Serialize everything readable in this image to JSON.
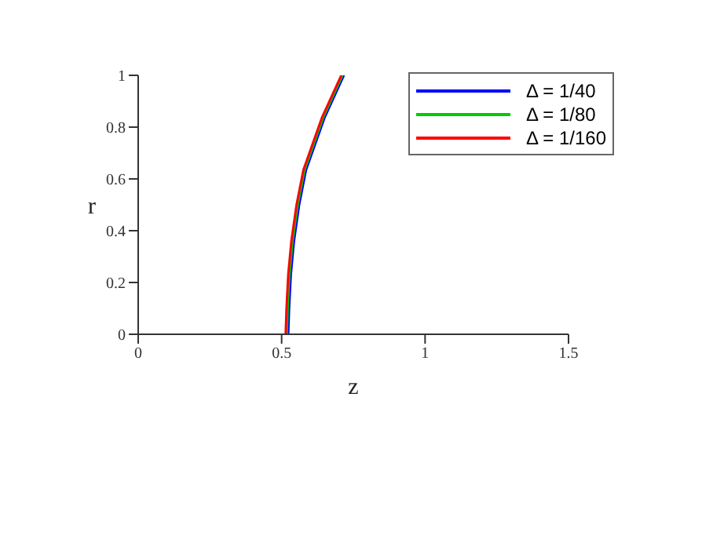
{
  "chart_data": {
    "type": "line",
    "xlabel": "z",
    "ylabel": "r",
    "xlim": [
      0,
      1.5
    ],
    "ylim": [
      0,
      1
    ],
    "xticks": [
      0,
      0.5,
      1,
      1.5
    ],
    "yticks": [
      0,
      0.2,
      0.4,
      0.6,
      0.8,
      1
    ],
    "grid": false,
    "legend": "top right",
    "marker": "none",
    "line_style": "solid",
    "series": [
      {
        "name": "Δ = 1/40",
        "color": "#0000ff",
        "x": [
          0.523,
          0.526,
          0.532,
          0.543,
          0.561,
          0.585,
          0.649,
          0.717
        ],
        "values": [
          0,
          0.1,
          0.23,
          0.36,
          0.5,
          0.635,
          0.835,
          1
        ]
      },
      {
        "name": "Δ = 1/80",
        "color": "#00cc00",
        "x": [
          0.518,
          0.521,
          0.527,
          0.538,
          0.556,
          0.58,
          0.644,
          0.712
        ],
        "values": [
          0,
          0.1,
          0.23,
          0.36,
          0.5,
          0.635,
          0.835,
          1
        ]
      },
      {
        "name": "Δ = 1/160",
        "color": "#ff0000",
        "x": [
          0.514,
          0.517,
          0.523,
          0.534,
          0.552,
          0.576,
          0.64,
          0.708
        ],
        "values": [
          0,
          0.1,
          0.23,
          0.36,
          0.5,
          0.635,
          0.835,
          1
        ]
      }
    ]
  }
}
